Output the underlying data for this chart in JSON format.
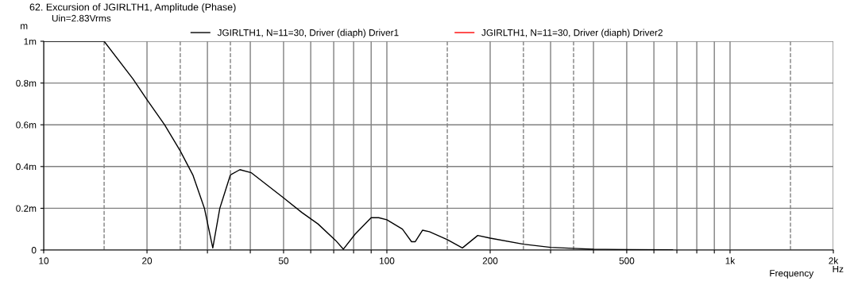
{
  "chart_data": {
    "type": "line",
    "title": "62. Excursion of JGIRLTH1, Amplitude (Phase)",
    "xlabel": "Frequency",
    "ylabel": "m",
    "annotations": [
      "Uin=2.83Vrms",
      "Hz"
    ],
    "series": [
      {
        "name": "JGIRLTH1, N=11=30, Driver (diaph) Driver1",
        "color": "#000000",
        "x": [
          10,
          15,
          18.2,
          20,
          22.5,
          25,
          27.2,
          29.4,
          31.1,
          32.6,
          35,
          37.3,
          40.3,
          50,
          56.5,
          63,
          71,
          74.7,
          80.8,
          90,
          94.7,
          100,
          111,
          118,
          121,
          127,
          133,
          150,
          166,
          184,
          200,
          250,
          300,
          360,
          400,
          500,
          680
        ],
        "values": [
          1,
          1,
          0.82,
          0.72,
          0.6,
          0.475,
          0.36,
          0.2,
          0.01,
          0.2,
          0.36,
          0.385,
          0.37,
          0.25,
          0.18,
          0.125,
          0.045,
          0.004,
          0.076,
          0.155,
          0.155,
          0.145,
          0.1,
          0.04,
          0.04,
          0.095,
          0.088,
          0.05,
          0.01,
          0.07,
          0.057,
          0.028,
          0.013,
          0.007,
          0.004,
          0.002,
          0.001
        ]
      },
      {
        "name": "JGIRLTH1, N=11=30, Driver (diaph) Driver2",
        "color": "#ff0000"
      }
    ],
    "log": "x",
    "xlim": [
      10,
      2000
    ],
    "xticks": [
      10,
      {
        "value": 20,
        "label": "20"
      },
      {
        "value": 30,
        "label": null
      },
      {
        "value": 40,
        "label": null
      },
      50,
      {
        "value": 60,
        "label": null
      },
      {
        "value": 70,
        "label": null
      },
      {
        "value": 80,
        "label": null
      },
      {
        "value": 90,
        "label": null
      },
      100,
      200,
      {
        "value": 300,
        "label": null
      },
      {
        "value": 400,
        "label": null
      },
      500,
      {
        "value": 600,
        "label": null
      },
      {
        "value": 700,
        "label": null
      },
      {
        "value": 800,
        "label": null
      },
      {
        "value": 900,
        "label": null
      },
      {
        "value": 1000,
        "label": "1k"
      },
      {
        "value": 2000,
        "label": "2k"
      }
    ],
    "ylim": [
      0,
      1
    ],
    "yticks": [
      0,
      {
        "value": 0.2,
        "label": "0.2m"
      },
      {
        "value": 0.4,
        "label": "0.4m"
      },
      {
        "value": 0.6,
        "label": "0.6m"
      },
      {
        "value": 0.8,
        "label": "0.8m"
      },
      {
        "value": 1,
        "label": "1m"
      }
    ],
    "ref_lines": [
      {
        "axis": "x",
        "value": 15,
        "label": null,
        "color": "#808080",
        "line_style": "dashed"
      },
      {
        "axis": "x",
        "value": 25,
        "label": null,
        "color": "#808080",
        "line_style": "dashed"
      },
      {
        "axis": "x",
        "value": 35,
        "label": null,
        "color": "#808080",
        "line_style": "dashed"
      },
      {
        "axis": "x",
        "value": 150,
        "label": null,
        "color": "#808080",
        "line_style": "dashed"
      },
      {
        "axis": "x",
        "value": 250,
        "label": null,
        "color": "#808080",
        "line_style": "dashed"
      },
      {
        "axis": "x",
        "value": 350,
        "label": null,
        "color": "#808080",
        "line_style": "dashed"
      },
      {
        "axis": "x",
        "value": 1500,
        "label": null,
        "color": "#808080",
        "line_style": "dashed"
      }
    ],
    "grid": true,
    "legend": "top",
    "line_style": "solid",
    "marker": "none"
  }
}
